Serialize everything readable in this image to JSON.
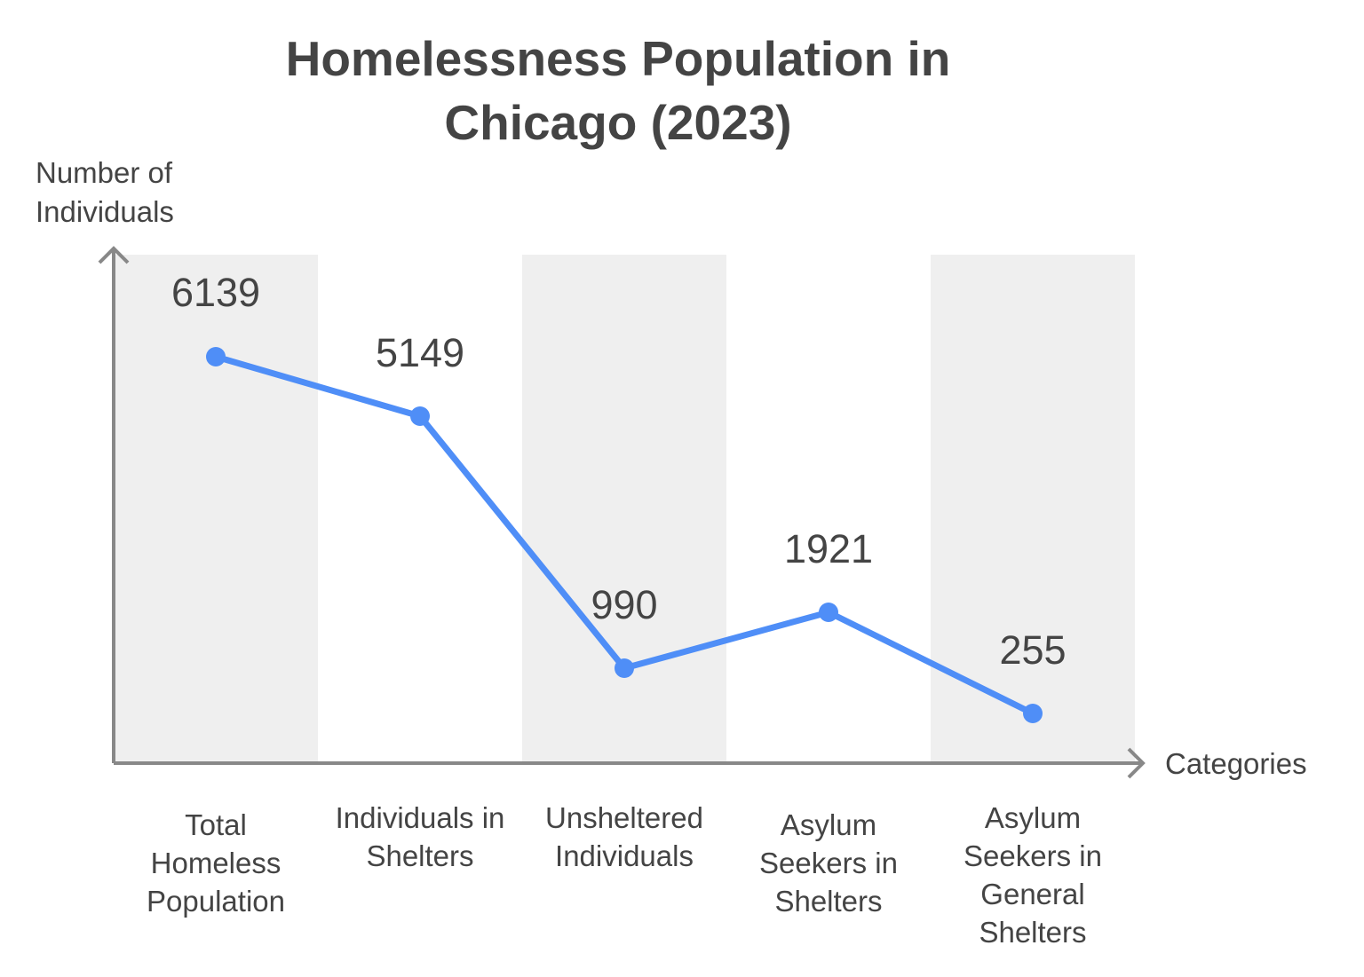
{
  "chart_data": {
    "type": "line",
    "title": "Homelessness Population in Chicago (2023)",
    "title_lines": [
      "Homelessness Population in",
      "Chicago (2023)"
    ],
    "ylabel": "Number of Individuals",
    "ylabel_lines": [
      "Number of",
      "Individuals"
    ],
    "xlabel": "Categories",
    "categories": [
      "Total Homeless Population",
      "Individuals in Shelters",
      "Unsheltered Individuals",
      "Asylum Seekers in Shelters",
      "Asylum Seekers in General Shelters"
    ],
    "values": [
      6139,
      5149,
      990,
      1921,
      255
    ],
    "data_labels": [
      "6139",
      "5149",
      "990",
      "1921",
      "255"
    ],
    "line_color": "#4f8ef7",
    "band_color": "#efefef",
    "axis_color": "#888888",
    "grid": false,
    "legend": "none"
  }
}
